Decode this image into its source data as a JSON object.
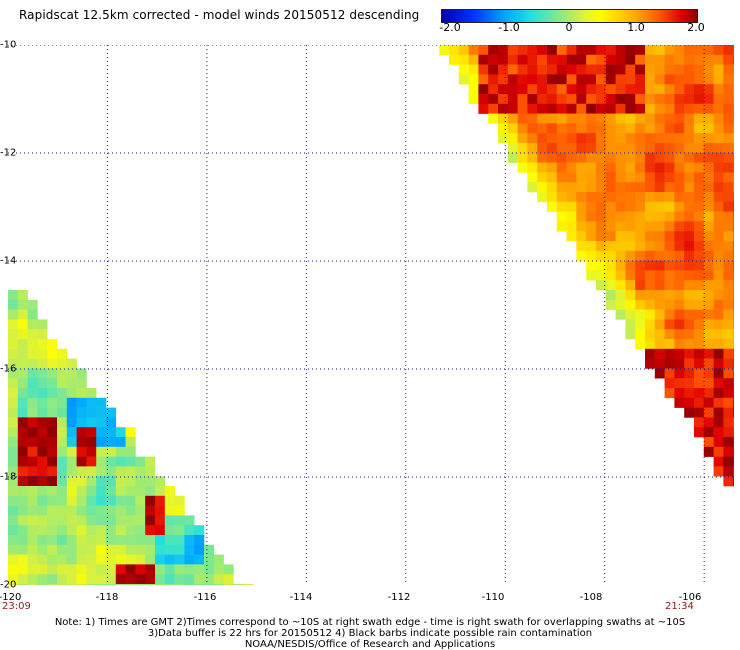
{
  "header": {
    "title": "Rapidscat 12.5km corrected - model winds 20150512 descending"
  },
  "colorbar": {
    "ticks": [
      "-2.0",
      "-1.0",
      "0",
      "1.0",
      "2.0"
    ],
    "min": -2.0,
    "max": 2.0
  },
  "map": {
    "lon_range": [
      -120,
      -105.4
    ],
    "lat_range": [
      -20,
      -10
    ],
    "lat_labels": [
      "-10",
      "-12",
      "-14",
      "-16",
      "-18",
      "-20"
    ],
    "lon_labels": [
      "-120",
      "-118",
      "-116",
      "-114",
      "-112",
      "-110",
      "-108",
      "-106"
    ],
    "time_left": "23:09",
    "time_right": "21:34",
    "grid": true,
    "swaths": [
      {
        "name": "left swath",
        "description_values": "wind speed difference values over lower-left triangular swath, mostly -1.0 to 0.5 with embedded +1.5 to +2.0 patches"
      },
      {
        "name": "right swath",
        "description_values": "wind speed difference values over upper-right triangular swath, mostly +0.5 to +2.0"
      }
    ]
  },
  "notes": {
    "line1": "Note: 1) Times are GMT 2)Times correspond to ~10S at right swath edge - time is right swath for overlapping swaths at ~10S",
    "line2": "3)Data buffer is 22 hrs for 20150512 4) Black barbs indicate possible rain contamination",
    "line3": "NOAA/NESDIS/Office of Research and Applications"
  },
  "colors": {
    "grid": "#1a1a8c",
    "time_label": "#8b1a1a"
  }
}
